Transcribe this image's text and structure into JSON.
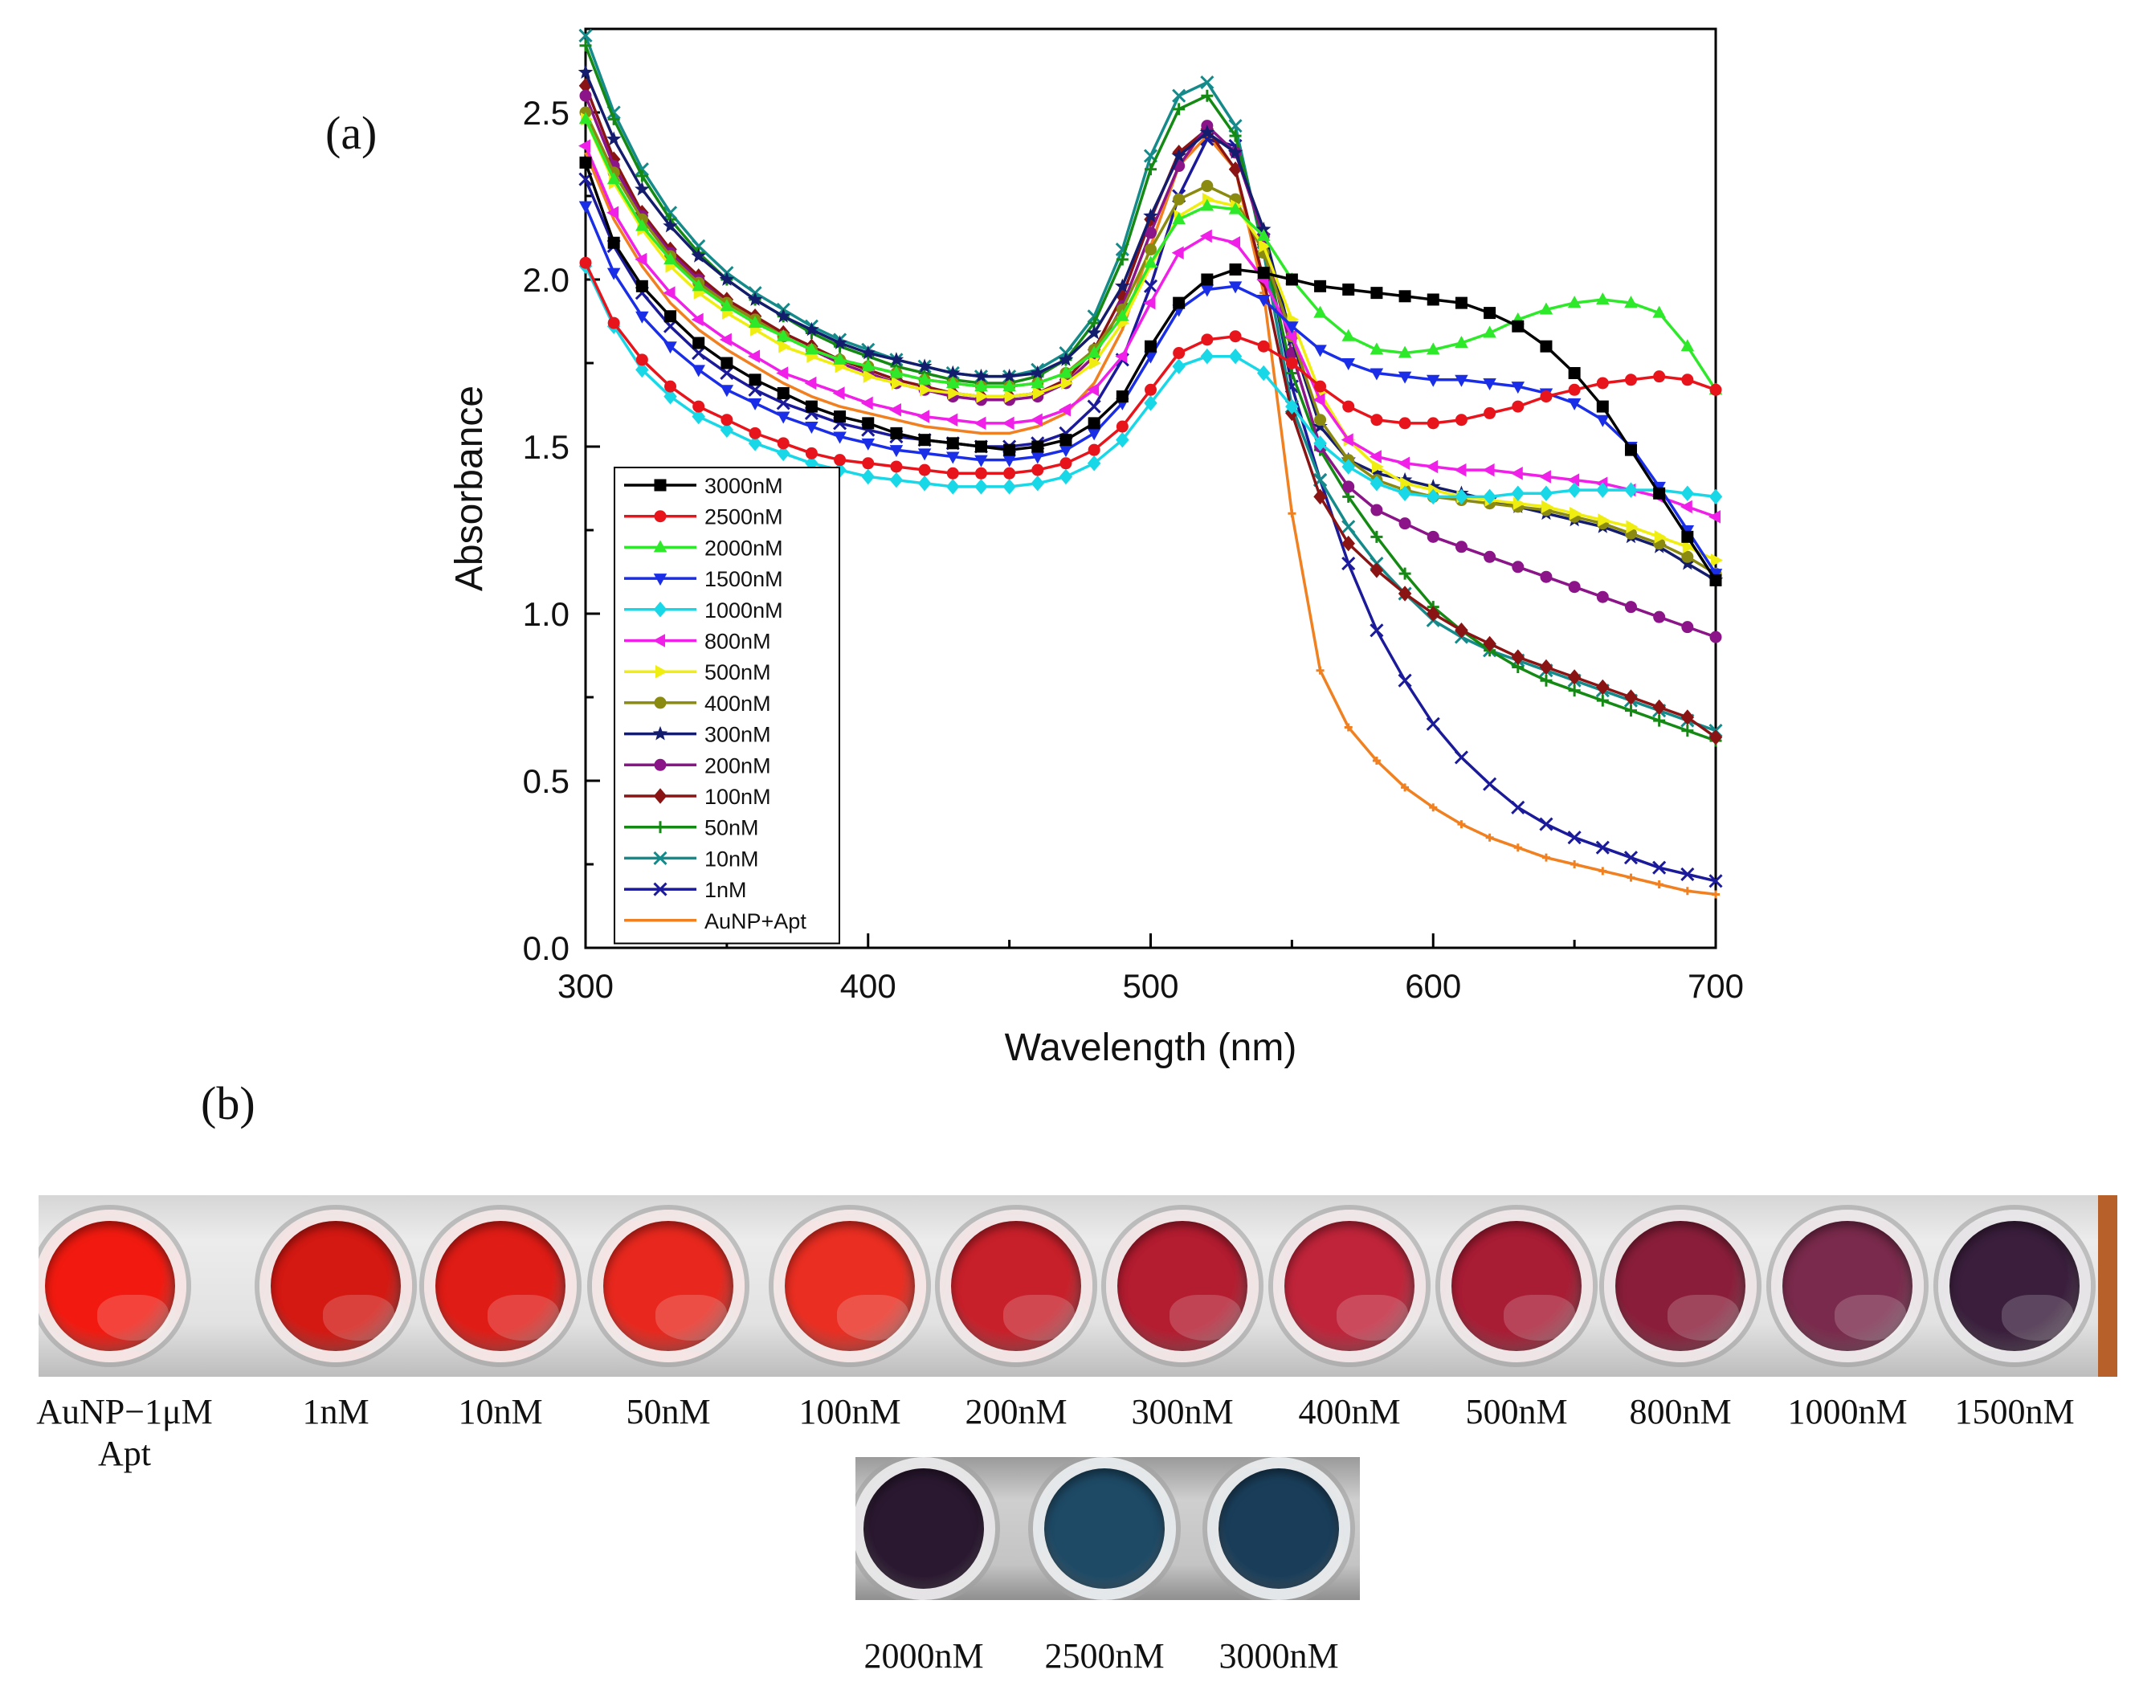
{
  "panels": {
    "a_label": "(a)",
    "b_label": "(b)"
  },
  "chart_data": {
    "type": "line",
    "xlabel": "Wavelength (nm)",
    "ylabel": "Absorbance",
    "xlim": [
      300,
      700
    ],
    "ylim": [
      0.0,
      2.75
    ],
    "xticks": [
      300,
      400,
      500,
      600,
      700
    ],
    "xtick_labels": [
      "300",
      "400",
      "500",
      "600",
      "700"
    ],
    "yticks": [
      0.0,
      0.5,
      1.0,
      1.5,
      2.0,
      2.5
    ],
    "ytick_labels": [
      "0.0",
      "0.5",
      "1.0",
      "1.5",
      "2.0",
      "2.5"
    ],
    "legend_position": "bottom-left",
    "x": [
      300,
      310,
      320,
      330,
      340,
      350,
      360,
      370,
      380,
      390,
      400,
      410,
      420,
      430,
      440,
      450,
      460,
      470,
      480,
      490,
      500,
      510,
      520,
      530,
      540,
      550,
      560,
      570,
      580,
      590,
      600,
      610,
      620,
      630,
      640,
      650,
      660,
      670,
      680,
      690,
      700
    ],
    "series": [
      {
        "name": "3000nM",
        "color": "#000000",
        "marker": "square",
        "values": [
          2.35,
          2.11,
          1.98,
          1.89,
          1.81,
          1.75,
          1.7,
          1.66,
          1.62,
          1.59,
          1.57,
          1.54,
          1.52,
          1.51,
          1.5,
          1.49,
          1.5,
          1.52,
          1.57,
          1.65,
          1.8,
          1.93,
          2.0,
          2.03,
          2.02,
          2.0,
          1.98,
          1.97,
          1.96,
          1.95,
          1.94,
          1.93,
          1.9,
          1.86,
          1.8,
          1.72,
          1.62,
          1.49,
          1.36,
          1.23,
          1.1
        ]
      },
      {
        "name": "2500nM",
        "color": "#e8141c",
        "marker": "circle",
        "values": [
          2.05,
          1.87,
          1.76,
          1.68,
          1.62,
          1.58,
          1.54,
          1.51,
          1.48,
          1.46,
          1.45,
          1.44,
          1.43,
          1.42,
          1.42,
          1.42,
          1.43,
          1.45,
          1.49,
          1.56,
          1.67,
          1.78,
          1.82,
          1.83,
          1.8,
          1.75,
          1.68,
          1.62,
          1.58,
          1.57,
          1.57,
          1.58,
          1.6,
          1.62,
          1.65,
          1.67,
          1.69,
          1.7,
          1.71,
          1.7,
          1.67
        ]
      },
      {
        "name": "2000nM",
        "color": "#2ee82a",
        "marker": "triangle-up",
        "values": [
          2.48,
          2.3,
          2.16,
          2.06,
          1.98,
          1.92,
          1.87,
          1.83,
          1.79,
          1.76,
          1.74,
          1.72,
          1.7,
          1.69,
          1.68,
          1.68,
          1.69,
          1.72,
          1.78,
          1.89,
          2.05,
          2.18,
          2.22,
          2.21,
          2.13,
          2.0,
          1.9,
          1.83,
          1.79,
          1.78,
          1.79,
          1.81,
          1.84,
          1.88,
          1.91,
          1.93,
          1.94,
          1.93,
          1.9,
          1.8,
          1.67
        ]
      },
      {
        "name": "1500nM",
        "color": "#1a2ee8",
        "marker": "triangle-down",
        "values": [
          2.22,
          2.02,
          1.89,
          1.8,
          1.73,
          1.67,
          1.63,
          1.59,
          1.56,
          1.53,
          1.51,
          1.49,
          1.48,
          1.47,
          1.46,
          1.46,
          1.47,
          1.49,
          1.54,
          1.63,
          1.77,
          1.91,
          1.97,
          1.98,
          1.94,
          1.86,
          1.79,
          1.75,
          1.72,
          1.71,
          1.7,
          1.7,
          1.69,
          1.68,
          1.66,
          1.63,
          1.58,
          1.5,
          1.38,
          1.25,
          1.12
        ]
      },
      {
        "name": "1000nM",
        "color": "#18d8e8",
        "marker": "diamond",
        "values": [
          2.04,
          1.86,
          1.73,
          1.65,
          1.59,
          1.55,
          1.51,
          1.48,
          1.45,
          1.43,
          1.41,
          1.4,
          1.39,
          1.38,
          1.38,
          1.38,
          1.39,
          1.41,
          1.45,
          1.52,
          1.63,
          1.74,
          1.77,
          1.77,
          1.72,
          1.62,
          1.51,
          1.44,
          1.39,
          1.36,
          1.35,
          1.35,
          1.35,
          1.36,
          1.36,
          1.37,
          1.37,
          1.37,
          1.37,
          1.36,
          1.35
        ]
      },
      {
        "name": "800nM",
        "color": "#f020e8",
        "marker": "triangle-left",
        "values": [
          2.4,
          2.2,
          2.06,
          1.96,
          1.88,
          1.82,
          1.77,
          1.72,
          1.69,
          1.66,
          1.63,
          1.61,
          1.59,
          1.58,
          1.57,
          1.57,
          1.58,
          1.61,
          1.67,
          1.77,
          1.93,
          2.08,
          2.13,
          2.11,
          2.0,
          1.83,
          1.64,
          1.52,
          1.47,
          1.45,
          1.44,
          1.43,
          1.43,
          1.42,
          1.41,
          1.4,
          1.39,
          1.37,
          1.35,
          1.32,
          1.29
        ]
      },
      {
        "name": "500nM",
        "color": "#f0ee10",
        "marker": "triangle-right",
        "values": [
          2.48,
          2.29,
          2.15,
          2.04,
          1.96,
          1.9,
          1.85,
          1.8,
          1.77,
          1.74,
          1.71,
          1.69,
          1.67,
          1.66,
          1.65,
          1.65,
          1.66,
          1.69,
          1.75,
          1.87,
          2.04,
          2.19,
          2.24,
          2.22,
          2.1,
          1.88,
          1.66,
          1.52,
          1.44,
          1.39,
          1.37,
          1.35,
          1.34,
          1.33,
          1.32,
          1.3,
          1.28,
          1.26,
          1.23,
          1.2,
          1.16
        ]
      },
      {
        "name": "400nM",
        "color": "#8a8a10",
        "marker": "circle",
        "values": [
          2.5,
          2.32,
          2.18,
          2.07,
          1.99,
          1.93,
          1.88,
          1.83,
          1.79,
          1.76,
          1.74,
          1.72,
          1.7,
          1.69,
          1.68,
          1.68,
          1.69,
          1.72,
          1.79,
          1.91,
          2.09,
          2.24,
          2.28,
          2.24,
          2.08,
          1.83,
          1.58,
          1.46,
          1.4,
          1.37,
          1.35,
          1.34,
          1.33,
          1.32,
          1.31,
          1.29,
          1.27,
          1.24,
          1.21,
          1.17,
          1.12
        ]
      },
      {
        "name": "300nM",
        "color": "#141c6e",
        "marker": "star",
        "values": [
          2.62,
          2.42,
          2.27,
          2.16,
          2.07,
          2.0,
          1.94,
          1.89,
          1.85,
          1.81,
          1.78,
          1.76,
          1.74,
          1.72,
          1.71,
          1.71,
          1.72,
          1.76,
          1.84,
          1.98,
          2.19,
          2.37,
          2.44,
          2.38,
          2.15,
          1.82,
          1.56,
          1.46,
          1.42,
          1.4,
          1.38,
          1.36,
          1.34,
          1.32,
          1.3,
          1.28,
          1.26,
          1.23,
          1.2,
          1.15,
          1.1
        ]
      },
      {
        "name": "200nM",
        "color": "#8a1488",
        "marker": "circle",
        "values": [
          2.55,
          2.34,
          2.19,
          2.08,
          2.0,
          1.93,
          1.88,
          1.83,
          1.79,
          1.75,
          1.72,
          1.69,
          1.67,
          1.65,
          1.64,
          1.64,
          1.65,
          1.69,
          1.77,
          1.92,
          2.14,
          2.34,
          2.46,
          2.38,
          2.13,
          1.78,
          1.5,
          1.38,
          1.31,
          1.27,
          1.23,
          1.2,
          1.17,
          1.14,
          1.11,
          1.08,
          1.05,
          1.02,
          0.99,
          0.96,
          0.93
        ]
      },
      {
        "name": "100nM",
        "color": "#8a1414",
        "marker": "diamond",
        "values": [
          2.58,
          2.36,
          2.2,
          2.09,
          2.01,
          1.94,
          1.89,
          1.84,
          1.8,
          1.76,
          1.73,
          1.7,
          1.68,
          1.66,
          1.65,
          1.65,
          1.66,
          1.7,
          1.79,
          1.95,
          2.18,
          2.38,
          2.45,
          2.33,
          2.0,
          1.6,
          1.35,
          1.21,
          1.13,
          1.06,
          1.0,
          0.95,
          0.91,
          0.87,
          0.84,
          0.81,
          0.78,
          0.75,
          0.72,
          0.69,
          0.63
        ]
      },
      {
        "name": "50nM",
        "color": "#148a14",
        "marker": "plus",
        "values": [
          2.7,
          2.48,
          2.31,
          2.18,
          2.08,
          2.0,
          1.94,
          1.89,
          1.84,
          1.8,
          1.77,
          1.74,
          1.72,
          1.7,
          1.69,
          1.69,
          1.71,
          1.76,
          1.87,
          2.06,
          2.33,
          2.51,
          2.55,
          2.43,
          2.1,
          1.72,
          1.49,
          1.35,
          1.23,
          1.12,
          1.02,
          0.95,
          0.89,
          0.84,
          0.8,
          0.77,
          0.74,
          0.71,
          0.68,
          0.65,
          0.62
        ]
      },
      {
        "name": "10nM",
        "color": "#148a8a",
        "marker": "x",
        "values": [
          2.73,
          2.5,
          2.33,
          2.2,
          2.1,
          2.02,
          1.96,
          1.91,
          1.86,
          1.82,
          1.79,
          1.76,
          1.74,
          1.72,
          1.71,
          1.71,
          1.73,
          1.78,
          1.89,
          2.09,
          2.37,
          2.55,
          2.59,
          2.46,
          2.08,
          1.62,
          1.4,
          1.26,
          1.15,
          1.06,
          0.98,
          0.93,
          0.89,
          0.86,
          0.83,
          0.8,
          0.77,
          0.74,
          0.71,
          0.68,
          0.65
        ]
      },
      {
        "name": "1nM",
        "color": "#1a1a9a",
        "marker": "x",
        "values": [
          2.3,
          2.1,
          1.96,
          1.86,
          1.78,
          1.72,
          1.67,
          1.63,
          1.6,
          1.57,
          1.55,
          1.53,
          1.52,
          1.51,
          1.5,
          1.5,
          1.51,
          1.54,
          1.62,
          1.76,
          1.98,
          2.25,
          2.42,
          2.4,
          2.12,
          1.68,
          1.4,
          1.15,
          0.95,
          0.8,
          0.67,
          0.57,
          0.49,
          0.42,
          0.37,
          0.33,
          0.3,
          0.27,
          0.24,
          0.22,
          0.2
        ]
      },
      {
        "name": "AuNP+Apt",
        "color": "#f08020",
        "marker": "none",
        "values": [
          2.38,
          2.18,
          2.04,
          1.93,
          1.85,
          1.79,
          1.74,
          1.69,
          1.65,
          1.62,
          1.6,
          1.58,
          1.56,
          1.55,
          1.54,
          1.54,
          1.56,
          1.6,
          1.69,
          1.85,
          2.1,
          2.34,
          2.43,
          2.33,
          1.96,
          1.3,
          0.83,
          0.66,
          0.56,
          0.48,
          0.42,
          0.37,
          0.33,
          0.3,
          0.27,
          0.25,
          0.23,
          0.21,
          0.19,
          0.17,
          0.16
        ]
      }
    ]
  },
  "wells_row1": [
    {
      "label": "AuNP−1μM",
      "label2": "Apt",
      "color": "#f21a10"
    },
    {
      "label": "1nM",
      "label2": "",
      "color": "#d41812"
    },
    {
      "label": "10nM",
      "label2": "",
      "color": "#e01c16"
    },
    {
      "label": "50nM",
      "label2": "",
      "color": "#e8281e"
    },
    {
      "label": "100nM",
      "label2": "",
      "color": "#ea2e22"
    },
    {
      "label": "200nM",
      "label2": "",
      "color": "#c8202a"
    },
    {
      "label": "300nM",
      "label2": "",
      "color": "#b41c30"
    },
    {
      "label": "400nM",
      "label2": "",
      "color": "#c0243a"
    },
    {
      "label": "500nM",
      "label2": "",
      "color": "#a81c34"
    },
    {
      "label": "800nM",
      "label2": "",
      "color": "#8a1e3a"
    },
    {
      "label": "1000nM",
      "label2": "",
      "color": "#7a2a4c"
    },
    {
      "label": "1500nM",
      "label2": "",
      "color": "#3a1e3c"
    }
  ],
  "wells_row2": [
    {
      "label": "2000nM",
      "color": "#2a1830"
    },
    {
      "label": "2500nM",
      "color": "#1e4a66"
    },
    {
      "label": "3000nM",
      "color": "#1a3e5a"
    }
  ]
}
